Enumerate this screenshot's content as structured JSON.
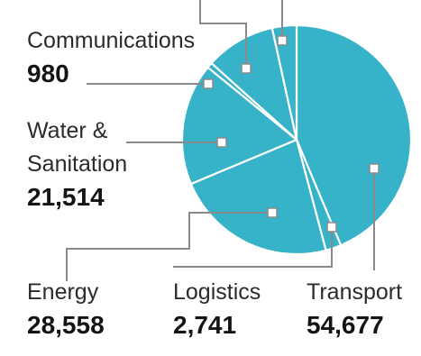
{
  "chart_data": {
    "type": "pie",
    "title": "",
    "slices": [
      {
        "name": "Transport",
        "value": 54677
      },
      {
        "name": "Logistics",
        "value": 2741
      },
      {
        "name": "Energy",
        "value": 28558
      },
      {
        "name": "Water &\nSanitation",
        "value": 21514
      },
      {
        "name": "Communications",
        "value": 980
      },
      {
        "name": "",
        "value": 12400
      },
      {
        "name": "",
        "value": 4300
      }
    ],
    "labels": {
      "communications": {
        "name": "Communications",
        "value": "980"
      },
      "water": {
        "name_line1": "Water &",
        "name_line2": "Sanitation",
        "value": "21,514"
      },
      "energy": {
        "name": "Energy",
        "value": "28,558"
      },
      "logistics": {
        "name": "Logistics",
        "value": "2,741"
      },
      "transport": {
        "name": "Transport",
        "value": "54,677"
      }
    },
    "colors": {
      "fill": "#36b3c8",
      "separator": "#ffffff",
      "leader": "#8a8a8a",
      "marker": "#ffffff"
    }
  }
}
